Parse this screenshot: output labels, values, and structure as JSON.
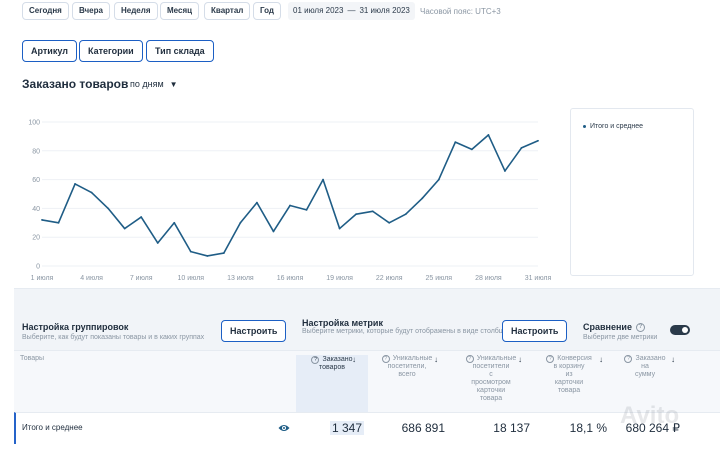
{
  "periods": [
    "Сегодня",
    "Вчера",
    "Неделя",
    "Месяц",
    "Квартал",
    "Год"
  ],
  "date_range": {
    "from": "01 июля 2023",
    "sep": "—",
    "to": "31 июля 2023"
  },
  "timezone": "Часовой пояс: UTC+3",
  "filters": [
    "Артикул",
    "Категории",
    "Тип склада"
  ],
  "chart_header": {
    "title": "Заказано товаров",
    "granularity": "по дням"
  },
  "chart_data": {
    "type": "line",
    "title": "",
    "xlabel": "",
    "ylabel": "",
    "ylim": [
      0,
      100
    ],
    "yticks": [
      "0",
      "20",
      "40",
      "60",
      "80",
      "100"
    ],
    "x": [
      "1 июля",
      "2 июля",
      "3 июля",
      "4 июля",
      "5 июля",
      "6 июля",
      "7 июля",
      "8 июля",
      "9 июля",
      "10 июля",
      "11 июля",
      "12 июля",
      "13 июля",
      "14 июля",
      "15 июля",
      "16 июля",
      "17 июля",
      "18 июля",
      "19 июля",
      "20 июля",
      "21 июля",
      "22 июля",
      "23 июля",
      "24 июля",
      "25 июля",
      "26 июля",
      "27 июля",
      "28 июля",
      "29 июля",
      "30 июля",
      "31 июля"
    ],
    "xticks": [
      "1 июля",
      "4 июля",
      "7 июля",
      "10 июля",
      "13 июля",
      "16 июля",
      "19 июля",
      "22 июля",
      "25 июля",
      "28 июля",
      "31 июля"
    ],
    "series": [
      {
        "name": "Итого и среднее",
        "color": "#1f5d86",
        "values": [
          32,
          30,
          57,
          51,
          40,
          26,
          34,
          16,
          30,
          10,
          7,
          9,
          30,
          44,
          24,
          42,
          39,
          60,
          26,
          36,
          38,
          30,
          36,
          47,
          60,
          86,
          81,
          91,
          66,
          82,
          87
        ]
      }
    ],
    "grid": true,
    "legend": "right"
  },
  "settings": {
    "grouping": {
      "title": "Настройка группировок",
      "desc": "Выберите, как будут показаны товары и в каких группах",
      "button": "Настроить"
    },
    "metrics": {
      "title": "Настройка метрик",
      "desc": "Выберите метрики, которые будут отображены в виде столбцов таблицы",
      "button": "Настроить"
    },
    "comparison": {
      "title": "Сравнение",
      "desc": "Выберите две метрики",
      "help": "?"
    }
  },
  "table": {
    "goods_header": "Товары",
    "columns": [
      {
        "lines": [
          "Заказано",
          "товаров"
        ]
      },
      {
        "lines": [
          "Уникальные",
          "посетители,",
          "всего"
        ]
      },
      {
        "lines": [
          "Уникальные",
          "посетители",
          "с",
          "просмотром",
          "карточки",
          "товара"
        ]
      },
      {
        "lines": [
          "Конверсия",
          "в корзину",
          "из",
          "карточки",
          "товара"
        ]
      },
      {
        "lines": [
          "Заказано",
          "на",
          "сумму"
        ]
      }
    ],
    "row": {
      "name": "Итого и среднее",
      "values": [
        "1 347",
        "686 891",
        "18 137",
        "18,1 %",
        "680 264 ₽"
      ]
    }
  },
  "watermark": "Avito"
}
